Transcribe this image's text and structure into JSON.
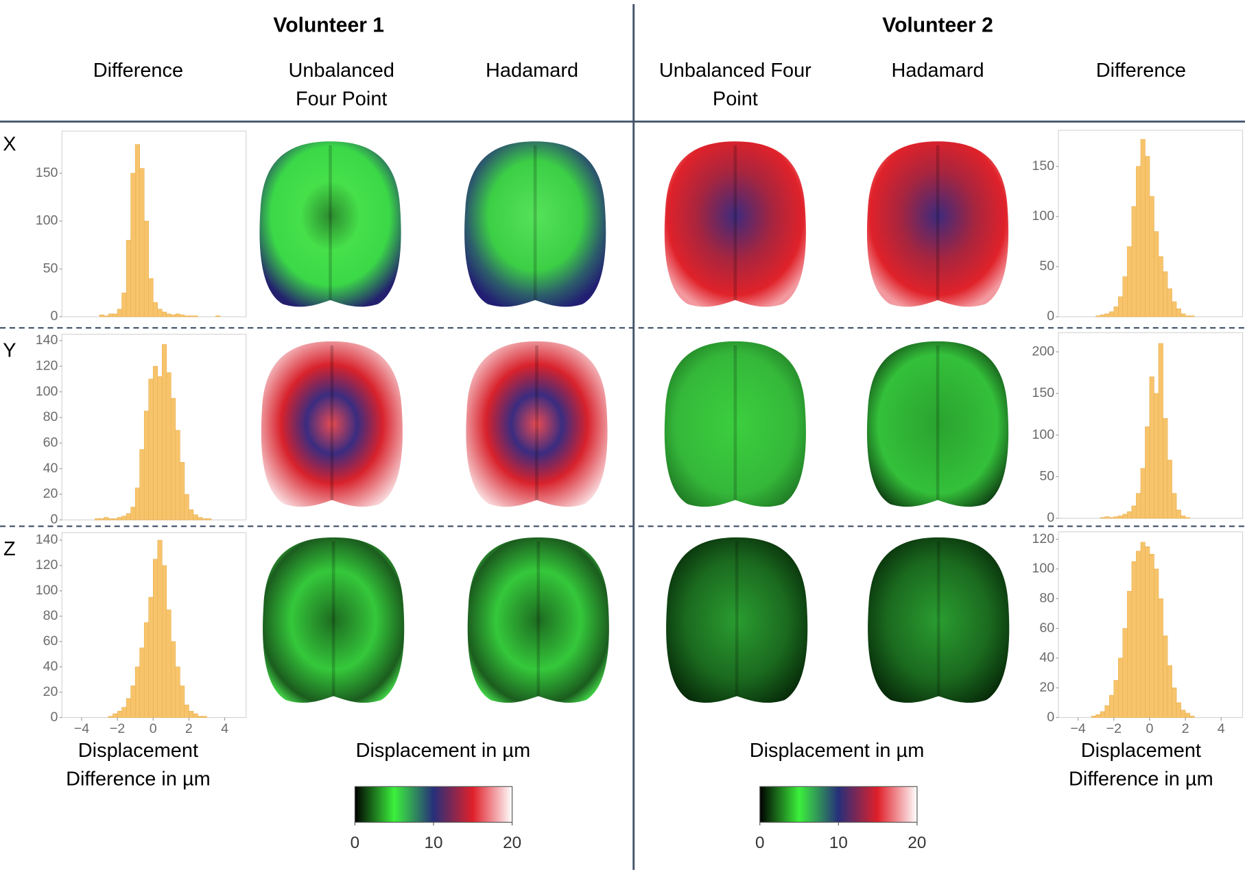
{
  "volunteers": [
    {
      "title": "Volunteer 1",
      "columns": [
        [
          "Difference"
        ],
        [
          "Unbalanced",
          "Four Point"
        ],
        [
          "Hadamard"
        ]
      ],
      "histogram_label": [
        "Displacement",
        "Difference in µm"
      ],
      "map_label": "Displacement in µm"
    },
    {
      "title": "Volunteer 2",
      "columns": [
        [
          "Unbalanced Four",
          "Point"
        ],
        [
          "Hadamard"
        ],
        [
          "Difference"
        ]
      ],
      "histogram_label": [
        "Displacement",
        "Difference in µm"
      ],
      "map_label": "Displacement in µm"
    }
  ],
  "rows": [
    "X",
    "Y",
    "Z"
  ],
  "chart_data": [
    {
      "type": "histogram",
      "color": "#f7c46c",
      "bins": [
        -4,
        -3.75,
        -3.5,
        -3.25,
        -3,
        -2.75,
        -2.5,
        -2.25,
        -2,
        -1.75,
        -1.5,
        -1.25,
        -1,
        -0.75,
        -0.5,
        -0.25,
        0,
        0.25,
        0.5,
        0.75,
        1,
        1.25,
        1.5,
        1.75,
        2,
        2.25,
        2.5,
        2.75,
        3,
        3.25,
        3.5,
        3.75,
        4
      ],
      "values": [
        0,
        0,
        0,
        0,
        2,
        1,
        3,
        3,
        8,
        25,
        80,
        150,
        180,
        155,
        100,
        40,
        15,
        8,
        5,
        3,
        2,
        3,
        2,
        1,
        1,
        1,
        0,
        0,
        0,
        0,
        1,
        0
      ],
      "xlim": [
        -5.1,
        5.2
      ],
      "ylim": [
        0,
        194
      ],
      "yticks": [
        0,
        50,
        100,
        150
      ]
    },
    {
      "type": "histogram",
      "color": "#f7c46c",
      "bins": [
        -4,
        -3.75,
        -3.5,
        -3.25,
        -3,
        -2.75,
        -2.5,
        -2.25,
        -2,
        -1.75,
        -1.5,
        -1.25,
        -1,
        -0.75,
        -0.5,
        -0.25,
        0,
        0.25,
        0.5,
        0.75,
        1,
        1.25,
        1.5,
        1.75,
        2,
        2.25,
        2.5,
        2.75,
        3,
        3.25,
        3.5,
        3.75,
        4
      ],
      "values": [
        0,
        0,
        0,
        1,
        1,
        2,
        1,
        1,
        2,
        3,
        5,
        10,
        25,
        55,
        85,
        110,
        120,
        112,
        137,
        115,
        95,
        70,
        45,
        20,
        8,
        4,
        2,
        1,
        1,
        0,
        0,
        0
      ],
      "xlim": [
        -5.1,
        5.2
      ],
      "ylim": [
        0,
        145
      ],
      "yticks": [
        0,
        20,
        40,
        60,
        80,
        100,
        120,
        140
      ]
    },
    {
      "type": "histogram",
      "color": "#f7c46c",
      "bins": [
        -4,
        -3.75,
        -3.5,
        -3.25,
        -3,
        -2.75,
        -2.5,
        -2.25,
        -2,
        -1.75,
        -1.5,
        -1.25,
        -1,
        -0.75,
        -0.5,
        -0.25,
        0,
        0.25,
        0.5,
        0.75,
        1,
        1.25,
        1.5,
        1.75,
        2,
        2.25,
        2.5,
        2.75,
        3,
        3.25,
        3.5,
        3.75,
        4
      ],
      "values": [
        0,
        0,
        0,
        0,
        0,
        0,
        1,
        3,
        5,
        8,
        15,
        25,
        40,
        55,
        75,
        95,
        125,
        140,
        120,
        85,
        60,
        40,
        25,
        10,
        5,
        3,
        1,
        1,
        0,
        0,
        0,
        0
      ],
      "xlim": [
        -5.1,
        5.2
      ],
      "ylim": [
        0,
        146
      ],
      "yticks": [
        0,
        20,
        40,
        60,
        80,
        100,
        120,
        140
      ],
      "xticks": [
        {
          "value": -4,
          "label": "−4"
        },
        {
          "value": -2,
          "label": "−2"
        },
        0,
        2,
        4
      ]
    },
    {
      "type": "histogram",
      "color": "#f7c46c",
      "bins": [
        -4,
        -3.75,
        -3.5,
        -3.25,
        -3,
        -2.75,
        -2.5,
        -2.25,
        -2,
        -1.75,
        -1.5,
        -1.25,
        -1,
        -0.75,
        -0.5,
        -0.25,
        0,
        0.25,
        0.5,
        0.75,
        1,
        1.25,
        1.5,
        1.75,
        2,
        2.25,
        2.5,
        2.75,
        3,
        3.25,
        3.5,
        3.75,
        4
      ],
      "values": [
        0,
        0,
        0,
        0,
        1,
        2,
        3,
        5,
        10,
        20,
        40,
        70,
        110,
        150,
        177,
        160,
        120,
        85,
        60,
        45,
        28,
        15,
        8,
        3,
        1,
        1,
        0,
        0,
        0,
        0,
        0,
        0
      ],
      "xlim": [
        -5.1,
        5.2
      ],
      "ylim": [
        0,
        186
      ],
      "yticks": [
        0,
        50,
        100,
        150
      ]
    },
    {
      "type": "histogram",
      "color": "#f7c46c",
      "bins": [
        -4,
        -3.75,
        -3.5,
        -3.25,
        -3,
        -2.75,
        -2.5,
        -2.25,
        -2,
        -1.75,
        -1.5,
        -1.25,
        -1,
        -0.75,
        -0.5,
        -0.25,
        0,
        0.25,
        0.5,
        0.75,
        1,
        1.25,
        1.5,
        1.75,
        2,
        2.25,
        2.5,
        2.75,
        3,
        3.25,
        3.5,
        3.75,
        4
      ],
      "values": [
        0,
        0,
        0,
        0,
        0,
        1,
        2,
        1,
        2,
        3,
        5,
        8,
        15,
        30,
        60,
        110,
        170,
        150,
        210,
        120,
        70,
        30,
        10,
        3,
        1,
        0,
        0,
        0,
        0,
        0,
        0,
        0
      ],
      "xlim": [
        -5.1,
        5.2
      ],
      "ylim": [
        0,
        223
      ],
      "yticks": [
        0,
        50,
        100,
        150,
        200
      ]
    },
    {
      "type": "histogram",
      "color": "#f7c46c",
      "bins": [
        -4,
        -3.75,
        -3.5,
        -3.25,
        -3,
        -2.75,
        -2.5,
        -2.25,
        -2,
        -1.75,
        -1.5,
        -1.25,
        -1,
        -0.75,
        -0.5,
        -0.25,
        0,
        0.25,
        0.5,
        0.75,
        1,
        1.25,
        1.5,
        1.75,
        2,
        2.25,
        2.5,
        2.75,
        3,
        3.25,
        3.5,
        3.75,
        4
      ],
      "values": [
        0,
        0,
        0,
        1,
        2,
        4,
        8,
        15,
        25,
        40,
        60,
        85,
        105,
        112,
        118,
        115,
        110,
        100,
        80,
        55,
        35,
        20,
        10,
        5,
        3,
        1,
        0,
        0,
        0,
        0,
        0,
        0
      ],
      "xlim": [
        -5.1,
        5.2
      ],
      "ylim": [
        0,
        125
      ],
      "yticks": [
        0,
        20,
        40,
        60,
        80,
        100,
        120
      ],
      "xticks": [
        {
          "value": -4,
          "label": "−4"
        },
        {
          "value": -2,
          "label": "−2"
        },
        0,
        2,
        4
      ]
    },
    {
      "type": "colorbar",
      "colors": [
        "#000000",
        "#3cf03c",
        "#262f7a",
        "#e0202a",
        "#ffffff"
      ],
      "xlim": [
        0,
        20
      ],
      "xticks": [
        0,
        10,
        20
      ]
    },
    {
      "type": "colorbar",
      "colors": [
        "#000000",
        "#3cf03c",
        "#262f7a",
        "#e0202a",
        "#ffffff"
      ],
      "xlim": [
        0,
        20
      ],
      "xticks": [
        0,
        10,
        20
      ]
    }
  ]
}
